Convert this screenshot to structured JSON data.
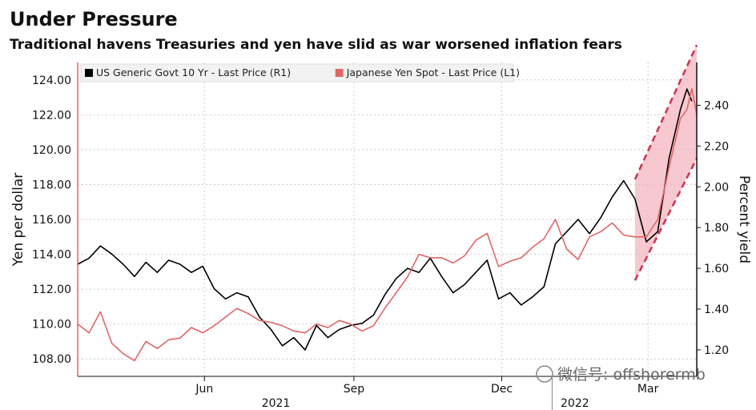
{
  "title": "Under Pressure",
  "subtitle": "Traditional havens Treasuries and yen have slid as war worsened inflation fears",
  "watermark": "微信号: offshorermb",
  "chart_data": {
    "type": "line",
    "title": "Under Pressure",
    "subtitle": "Traditional havens Treasuries and yen have slid as war worsened inflation fears",
    "x_range": [
      "2021-03-15",
      "2022-03-31"
    ],
    "x_ticks": [
      {
        "date": "2021-06-01",
        "label": "Jun"
      },
      {
        "date": "2021-09-01",
        "label": "Sep"
      },
      {
        "date": "2021-12-01",
        "label": "Dec"
      },
      {
        "date": "2022-03-01",
        "label": "Mar"
      }
    ],
    "year_labels": [
      {
        "date": "2021-07-15",
        "label": "2021"
      },
      {
        "date": "2022-01-15",
        "label": "2022"
      }
    ],
    "y_left": {
      "label": "Yen per dollar",
      "range": [
        107,
        125
      ],
      "ticks": [
        108,
        110,
        112,
        114,
        116,
        118,
        120,
        122,
        124
      ],
      "tick_labels": [
        "108.00",
        "110.00",
        "112.00",
        "114.00",
        "116.00",
        "118.00",
        "120.00",
        "122.00",
        "124.00"
      ]
    },
    "y_right": {
      "label": "Percent yield",
      "range": [
        1.07,
        2.61
      ],
      "ticks": [
        1.2,
        1.4,
        1.6,
        1.8,
        2.0,
        2.2,
        2.4
      ],
      "tick_labels": [
        "1.20",
        "1.40",
        "1.60",
        "1.80",
        "2.00",
        "2.20",
        "2.40"
      ]
    },
    "legend_position": "top-left",
    "grid": true,
    "series": [
      {
        "name": "US Generic Govt 10 Yr - Last Price (R1)",
        "axis": "right",
        "color": "#000000",
        "points": [
          [
            "2021-03-15",
            1.62
          ],
          [
            "2021-03-22",
            1.65
          ],
          [
            "2021-03-29",
            1.71
          ],
          [
            "2021-04-05",
            1.67
          ],
          [
            "2021-04-12",
            1.62
          ],
          [
            "2021-04-19",
            1.56
          ],
          [
            "2021-04-26",
            1.63
          ],
          [
            "2021-05-03",
            1.58
          ],
          [
            "2021-05-10",
            1.64
          ],
          [
            "2021-05-17",
            1.62
          ],
          [
            "2021-05-24",
            1.58
          ],
          [
            "2021-05-31",
            1.61
          ],
          [
            "2021-06-07",
            1.5
          ],
          [
            "2021-06-14",
            1.45
          ],
          [
            "2021-06-21",
            1.48
          ],
          [
            "2021-06-28",
            1.46
          ],
          [
            "2021-07-05",
            1.36
          ],
          [
            "2021-07-12",
            1.3
          ],
          [
            "2021-07-19",
            1.22
          ],
          [
            "2021-07-26",
            1.26
          ],
          [
            "2021-08-02",
            1.2
          ],
          [
            "2021-08-09",
            1.32
          ],
          [
            "2021-08-16",
            1.26
          ],
          [
            "2021-08-23",
            1.3
          ],
          [
            "2021-08-30",
            1.32
          ],
          [
            "2021-09-06",
            1.33
          ],
          [
            "2021-09-13",
            1.37
          ],
          [
            "2021-09-20",
            1.47
          ],
          [
            "2021-09-27",
            1.55
          ],
          [
            "2021-10-04",
            1.6
          ],
          [
            "2021-10-11",
            1.58
          ],
          [
            "2021-10-18",
            1.65
          ],
          [
            "2021-10-25",
            1.56
          ],
          [
            "2021-11-01",
            1.48
          ],
          [
            "2021-11-08",
            1.52
          ],
          [
            "2021-11-15",
            1.58
          ],
          [
            "2021-11-22",
            1.64
          ],
          [
            "2021-11-29",
            1.45
          ],
          [
            "2021-12-06",
            1.48
          ],
          [
            "2021-12-13",
            1.42
          ],
          [
            "2021-12-20",
            1.46
          ],
          [
            "2021-12-27",
            1.51
          ],
          [
            "2022-01-03",
            1.72
          ],
          [
            "2022-01-10",
            1.78
          ],
          [
            "2022-01-17",
            1.84
          ],
          [
            "2022-01-24",
            1.77
          ],
          [
            "2022-01-31",
            1.85
          ],
          [
            "2022-02-07",
            1.95
          ],
          [
            "2022-02-14",
            2.03
          ],
          [
            "2022-02-21",
            1.94
          ],
          [
            "2022-02-28",
            1.73
          ],
          [
            "2022-03-07",
            1.78
          ],
          [
            "2022-03-14",
            2.14
          ],
          [
            "2022-03-21",
            2.38
          ],
          [
            "2022-03-25",
            2.48
          ],
          [
            "2022-03-28",
            2.42
          ]
        ]
      },
      {
        "name": "Japanese Yen Spot - Last Price (L1)",
        "axis": "left",
        "color": "#e06666",
        "points": [
          [
            "2021-03-15",
            110.0
          ],
          [
            "2021-03-22",
            109.5
          ],
          [
            "2021-03-29",
            110.7
          ],
          [
            "2021-04-05",
            108.9
          ],
          [
            "2021-04-12",
            108.3
          ],
          [
            "2021-04-19",
            107.9
          ],
          [
            "2021-04-26",
            109.0
          ],
          [
            "2021-05-03",
            108.6
          ],
          [
            "2021-05-10",
            109.1
          ],
          [
            "2021-05-17",
            109.2
          ],
          [
            "2021-05-24",
            109.8
          ],
          [
            "2021-05-31",
            109.5
          ],
          [
            "2021-06-07",
            109.9
          ],
          [
            "2021-06-14",
            110.4
          ],
          [
            "2021-06-21",
            110.9
          ],
          [
            "2021-06-28",
            110.6
          ],
          [
            "2021-07-05",
            110.2
          ],
          [
            "2021-07-12",
            110.1
          ],
          [
            "2021-07-19",
            109.9
          ],
          [
            "2021-07-26",
            109.6
          ],
          [
            "2021-08-02",
            109.5
          ],
          [
            "2021-08-09",
            110.0
          ],
          [
            "2021-08-16",
            109.8
          ],
          [
            "2021-08-23",
            110.2
          ],
          [
            "2021-08-30",
            110.0
          ],
          [
            "2021-09-06",
            109.6
          ],
          [
            "2021-09-13",
            109.9
          ],
          [
            "2021-09-20",
            110.9
          ],
          [
            "2021-09-27",
            111.8
          ],
          [
            "2021-10-04",
            112.7
          ],
          [
            "2021-10-11",
            114.0
          ],
          [
            "2021-10-18",
            113.8
          ],
          [
            "2021-10-25",
            113.8
          ],
          [
            "2021-11-01",
            113.5
          ],
          [
            "2021-11-08",
            113.9
          ],
          [
            "2021-11-15",
            114.8
          ],
          [
            "2021-11-22",
            115.2
          ],
          [
            "2021-11-29",
            113.3
          ],
          [
            "2021-12-06",
            113.6
          ],
          [
            "2021-12-13",
            113.8
          ],
          [
            "2021-12-20",
            114.4
          ],
          [
            "2021-12-27",
            114.9
          ],
          [
            "2022-01-03",
            116.0
          ],
          [
            "2022-01-10",
            114.3
          ],
          [
            "2022-01-17",
            113.7
          ],
          [
            "2022-01-24",
            115.0
          ],
          [
            "2022-01-31",
            115.3
          ],
          [
            "2022-02-07",
            115.8
          ],
          [
            "2022-02-14",
            115.1
          ],
          [
            "2022-02-21",
            115.0
          ],
          [
            "2022-02-28",
            115.0
          ],
          [
            "2022-03-07",
            116.0
          ],
          [
            "2022-03-14",
            119.0
          ],
          [
            "2022-03-21",
            121.8
          ],
          [
            "2022-03-25",
            122.3
          ],
          [
            "2022-03-28",
            123.5
          ],
          [
            "2022-03-31",
            122.0
          ]
        ]
      }
    ],
    "annotations": [
      {
        "type": "shaded_channel",
        "color": "#f4b6bf",
        "from": [
          "2022-02-21",
          112.5
        ],
        "to_top": [
          "2022-03-31",
          126.0
        ],
        "to_bottom": [
          "2022-03-31",
          119.5
        ]
      }
    ]
  }
}
